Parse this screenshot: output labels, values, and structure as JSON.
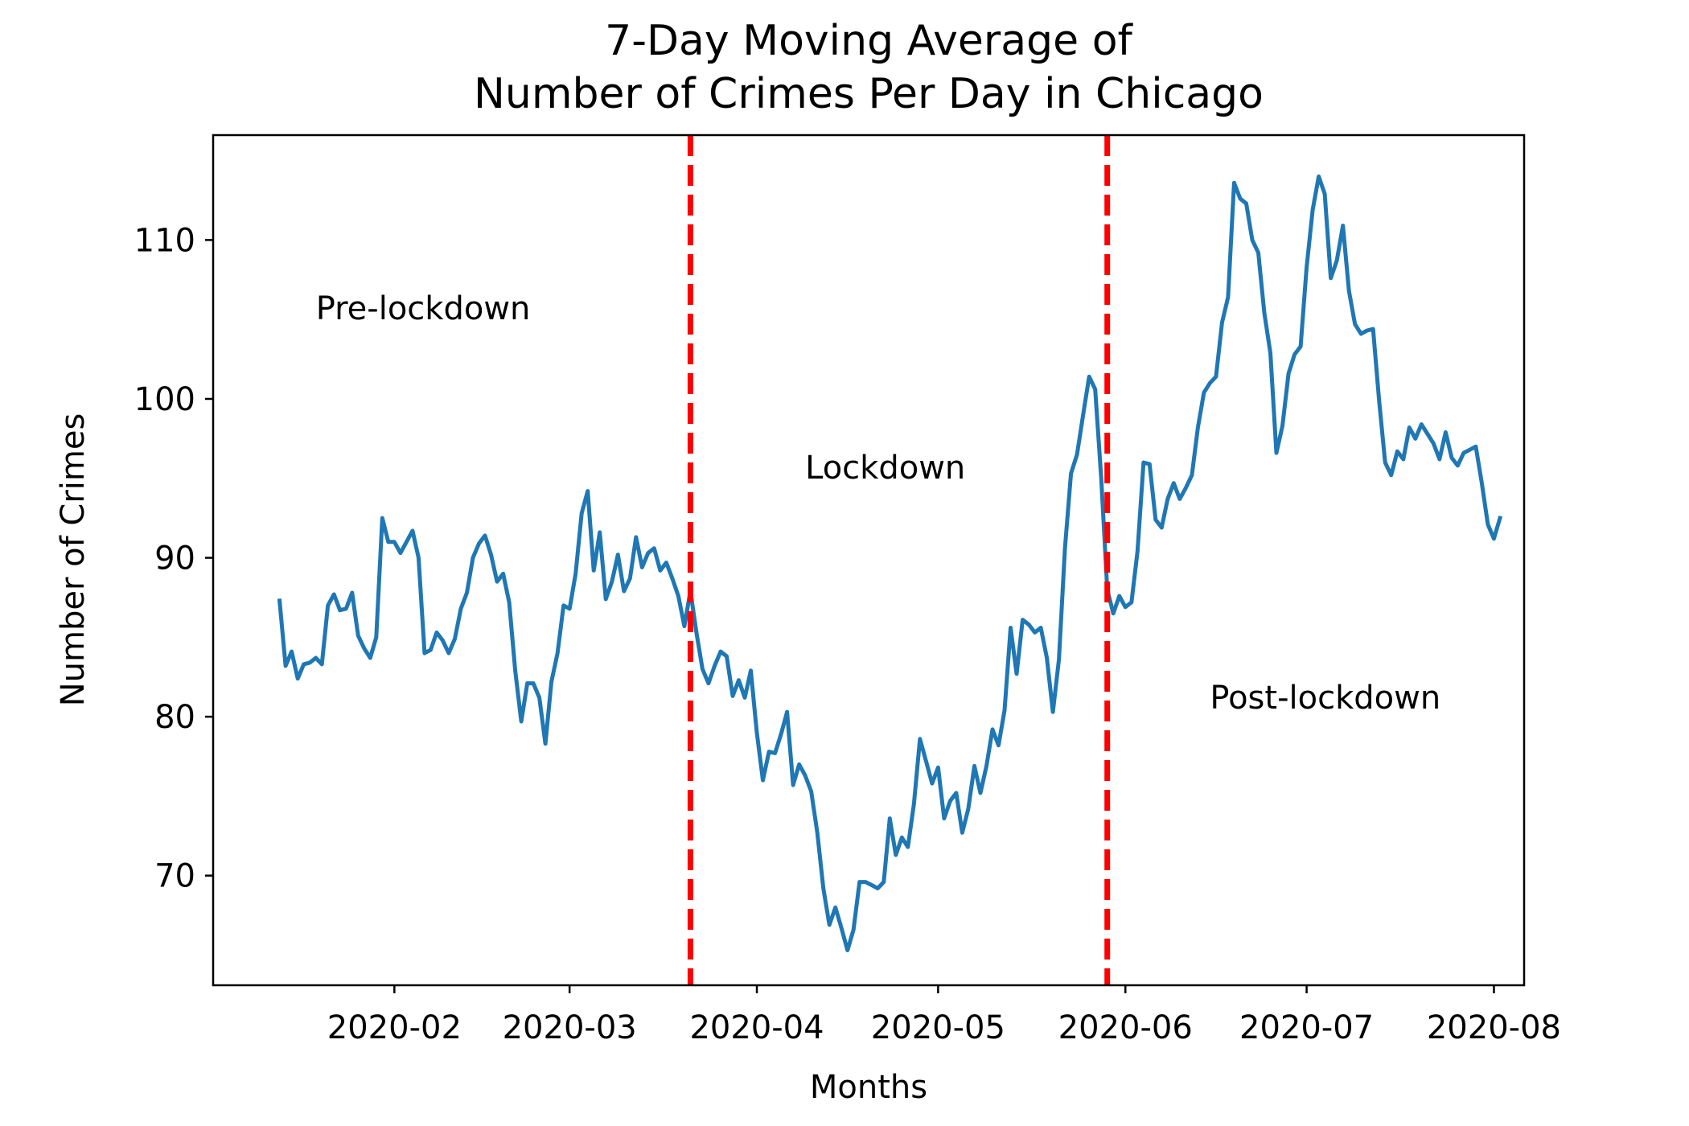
{
  "chart_data": {
    "type": "line",
    "title_lines": [
      "7-Day Moving Average of",
      "Number of Crimes Per Day in Chicago"
    ],
    "xlabel": "Months",
    "ylabel": "Number of Crimes",
    "x_ticks": [
      "2020-02",
      "2020-03",
      "2020-04",
      "2020-05",
      "2020-06",
      "2020-07",
      "2020-08"
    ],
    "y_ticks": [
      70,
      80,
      90,
      100,
      110
    ],
    "xlim": [
      "2020-01-02",
      "2020-08-06"
    ],
    "ylim": [
      63.1,
      116.6
    ],
    "grid": false,
    "legend": "none",
    "line_color": "#1f77b4",
    "vline_color": "#ff0000",
    "vertical_lines": [
      "2020-03-21",
      "2020-05-29"
    ],
    "region_labels": [
      {
        "text": "Pre-lockdown",
        "x": "2020-01-19",
        "y": 105.0
      },
      {
        "text": "Lockdown",
        "x": "2020-04-09",
        "y": 95.0
      },
      {
        "text": "Post-lockdown",
        "x": "2020-06-15",
        "y": 80.5
      }
    ],
    "start_date": "2020-01-13",
    "series": [
      {
        "values": [
          87.3,
          83.2,
          84.1,
          82.4,
          83.3,
          83.4,
          83.7,
          83.3,
          87.0,
          87.7,
          86.7,
          86.8,
          87.8,
          85.1,
          84.3,
          83.7,
          85.0,
          92.5,
          91.0,
          91.0,
          90.3,
          91.0,
          91.7,
          90.0,
          84.0,
          84.2,
          85.3,
          84.8,
          84.0,
          84.9,
          86.8,
          87.8,
          90.0,
          90.9,
          91.4,
          90.2,
          88.5,
          89.0,
          87.2,
          82.9,
          79.7,
          82.1,
          82.1,
          81.2,
          78.3,
          82.2,
          84.0,
          87.0,
          86.8,
          89.0,
          92.8,
          94.2,
          89.2,
          91.6,
          87.4,
          88.5,
          90.2,
          87.9,
          88.7,
          91.3,
          89.4,
          90.3,
          90.6,
          89.2,
          89.7,
          88.7,
          87.6,
          85.7,
          87.9,
          85.3,
          83.0,
          82.1,
          83.2,
          84.1,
          83.8,
          81.3,
          82.3,
          81.2,
          82.9,
          79.0,
          76.0,
          77.8,
          77.7,
          78.9,
          80.3,
          75.7,
          77.0,
          76.3,
          75.3,
          72.7,
          69.2,
          66.9,
          68.0,
          66.7,
          65.3,
          66.6,
          69.6,
          69.6,
          69.4,
          69.2,
          69.6,
          73.6,
          71.3,
          72.4,
          71.8,
          74.5,
          78.6,
          77.2,
          75.8,
          76.8,
          73.6,
          74.7,
          75.2,
          72.7,
          74.2,
          76.9,
          75.2,
          76.9,
          79.2,
          78.2,
          80.4,
          85.6,
          82.7,
          86.1,
          85.8,
          85.3,
          85.6,
          83.7,
          80.3,
          83.6,
          90.6,
          95.3,
          96.5,
          99.0,
          101.4,
          100.6,
          95.0,
          88.0,
          86.5,
          87.6,
          86.9,
          87.2,
          90.4,
          96.0,
          95.9,
          92.4,
          91.9,
          93.7,
          94.7,
          93.7,
          94.4,
          95.2,
          98.2,
          100.4,
          101.0,
          101.4,
          104.8,
          106.4,
          113.6,
          112.6,
          112.3,
          110.0,
          109.2,
          105.4,
          102.9,
          96.6,
          98.3,
          101.6,
          102.8,
          103.3,
          108.3,
          111.9,
          114.0,
          112.9,
          107.6,
          108.7,
          110.9,
          106.8,
          104.7,
          104.1,
          104.3,
          104.4,
          99.9,
          96.0,
          95.2,
          96.7,
          96.2,
          98.2,
          97.5,
          98.4,
          97.8,
          97.2,
          96.2,
          97.9,
          96.3,
          95.8,
          96.6,
          96.8,
          97.0,
          94.7,
          92.1,
          91.2,
          92.5
        ]
      }
    ]
  }
}
